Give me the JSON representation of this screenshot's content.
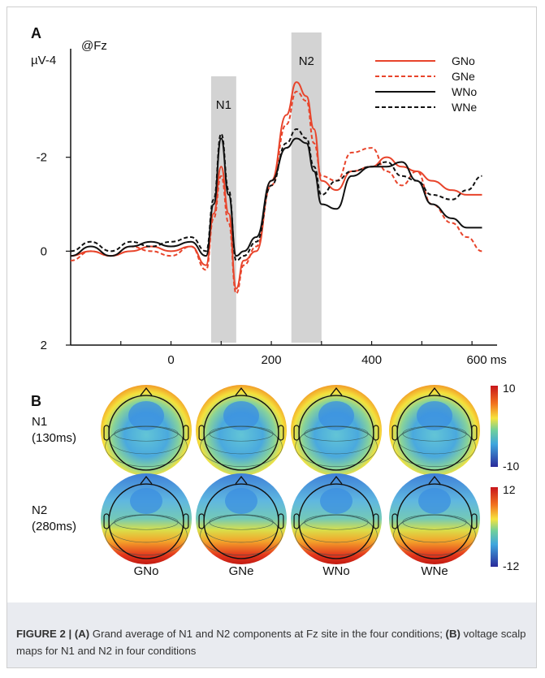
{
  "panel_a": {
    "label": "A",
    "site_label": "@Fz",
    "y_unit_label": "µV-4",
    "y_ticks": [
      "-2",
      "0",
      "2"
    ],
    "x_ticks": [
      "0",
      "200",
      "400",
      "600 ms"
    ],
    "window_labels": [
      "N1",
      "N2"
    ],
    "legend": [
      "GNo",
      "GNe",
      "WNo",
      "WNe"
    ]
  },
  "panel_b": {
    "label": "B",
    "rows": [
      {
        "name": "N1",
        "time": "(130ms)",
        "scale_max": "10",
        "scale_min": "-10"
      },
      {
        "name": "N2",
        "time": "(280ms)",
        "scale_max": "12",
        "scale_min": "-12"
      }
    ],
    "columns": [
      "GNo",
      "GNe",
      "WNo",
      "WNe"
    ]
  },
  "caption": {
    "figure": "FIGURE 2 |",
    "a_tag": "(A)",
    "a_text": " Grand average of N1 and N2 components at Fz site in the four conditions; ",
    "b_tag": "(B)",
    "b_text": " voltage scalp maps for N1 and N2 in four conditions"
  },
  "colors": {
    "go": "#e8442b",
    "wo": "#111111",
    "window": "#d3d3d3"
  },
  "chart_data": {
    "type": "line",
    "xlabel": "ms",
    "ylabel": "µV",
    "xlim": [
      -200,
      650
    ],
    "ylim": [
      2,
      -4
    ],
    "inverted_y": true,
    "time_windows": [
      {
        "name": "N1",
        "range": [
          80,
          130
        ]
      },
      {
        "name": "N2",
        "range": [
          240,
          300
        ]
      }
    ],
    "x": [
      -200,
      -160,
      -120,
      -80,
      -40,
      0,
      40,
      70,
      85,
      100,
      115,
      130,
      145,
      170,
      200,
      230,
      250,
      270,
      285,
      300,
      330,
      360,
      400,
      430,
      460,
      490,
      520,
      560,
      590,
      620
    ],
    "series": [
      {
        "name": "GNo",
        "style": "solid",
        "color": "#e8442b",
        "values": [
          0.1,
          0.0,
          0.1,
          0.0,
          -0.1,
          0.0,
          -0.1,
          0.3,
          -0.8,
          -1.8,
          -0.8,
          0.8,
          0.2,
          0.0,
          -1.5,
          -2.9,
          -3.6,
          -3.3,
          -2.6,
          -1.5,
          -1.3,
          -1.7,
          -1.8,
          -2.0,
          -1.8,
          -1.7,
          -1.5,
          -1.3,
          -1.2,
          -1.2
        ]
      },
      {
        "name": "GNe",
        "style": "dashed",
        "color": "#e8442b",
        "values": [
          0.2,
          0.0,
          0.1,
          -0.1,
          0.0,
          0.1,
          -0.1,
          0.4,
          -0.7,
          -1.6,
          -0.6,
          0.9,
          0.3,
          -0.1,
          -1.4,
          -2.7,
          -3.4,
          -3.2,
          -2.3,
          -1.6,
          -1.5,
          -2.1,
          -2.2,
          -1.7,
          -1.4,
          -1.7,
          -1.0,
          -0.6,
          -0.3,
          0.0
        ]
      },
      {
        "name": "WNo",
        "style": "solid",
        "color": "#111111",
        "values": [
          0.1,
          -0.1,
          0.1,
          -0.1,
          -0.2,
          -0.1,
          -0.2,
          0.1,
          -1.0,
          -2.4,
          -1.2,
          0.1,
          0.0,
          -0.3,
          -1.5,
          -2.2,
          -2.4,
          -2.3,
          -1.7,
          -1.0,
          -0.9,
          -1.6,
          -1.8,
          -1.8,
          -1.9,
          -1.5,
          -1.0,
          -0.7,
          -0.5,
          -0.5
        ]
      },
      {
        "name": "WNe",
        "style": "dashed",
        "color": "#111111",
        "values": [
          0.0,
          -0.2,
          0.0,
          -0.2,
          -0.1,
          -0.2,
          -0.3,
          0.0,
          -1.1,
          -2.5,
          -1.3,
          0.2,
          0.1,
          -0.2,
          -1.4,
          -2.3,
          -2.6,
          -2.4,
          -1.8,
          -1.2,
          -1.5,
          -1.7,
          -1.8,
          -1.9,
          -1.6,
          -1.5,
          -1.2,
          -1.1,
          -1.3,
          -1.6
        ]
      }
    ]
  }
}
